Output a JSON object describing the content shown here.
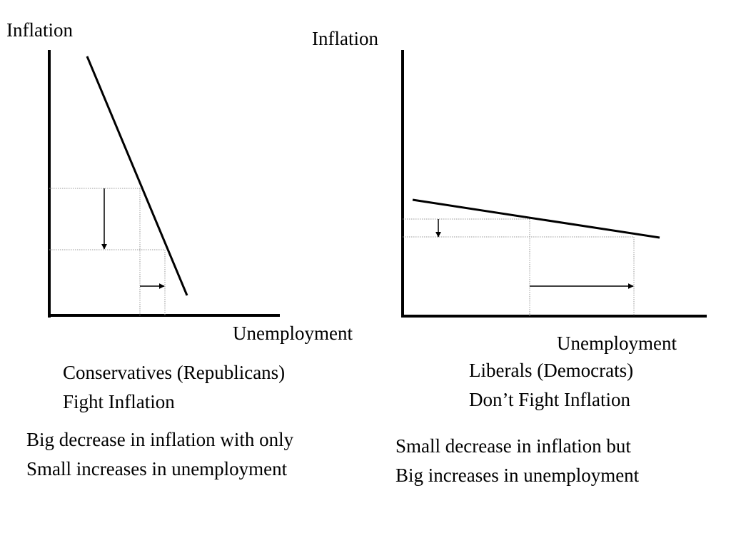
{
  "left_panel": {
    "y_axis_label": "Inflation",
    "x_axis_label": "Unemployment",
    "heading": [
      "Conservatives (Republicans)",
      "Fight Inflation"
    ],
    "note": [
      "Big decrease in inflation with only",
      "Small increases in unemployment"
    ]
  },
  "right_panel": {
    "y_axis_label": "Inflation",
    "x_axis_label": "Unemployment",
    "heading": [
      "Liberals (Democrats)",
      "Don’t Fight Inflation"
    ],
    "note": [
      "Small decrease in inflation but",
      "Big increases in unemployment"
    ]
  },
  "colors": {
    "line": "#000000",
    "guide": "#9a9a9a",
    "background": "#ffffff"
  }
}
